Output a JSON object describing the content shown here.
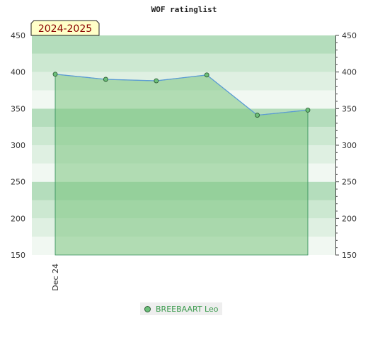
{
  "chart_data": {
    "type": "area",
    "title": "WOF ratinglist",
    "season_label": "2024-2025",
    "x_tick_labels": [
      "Dec 24"
    ],
    "ylim": [
      150,
      450
    ],
    "y_ticks": [
      150,
      200,
      250,
      300,
      350,
      400,
      450
    ],
    "y_ticks_right": true,
    "grid": false,
    "legend_position": "bottom-center",
    "series": [
      {
        "name": "BREEBAART Leo",
        "values": [
          397,
          390,
          388,
          396,
          341,
          348
        ],
        "line_color": "#5b9bd5",
        "fill_color": "#7cc47f",
        "marker_color": "#6cc07a"
      }
    ]
  }
}
